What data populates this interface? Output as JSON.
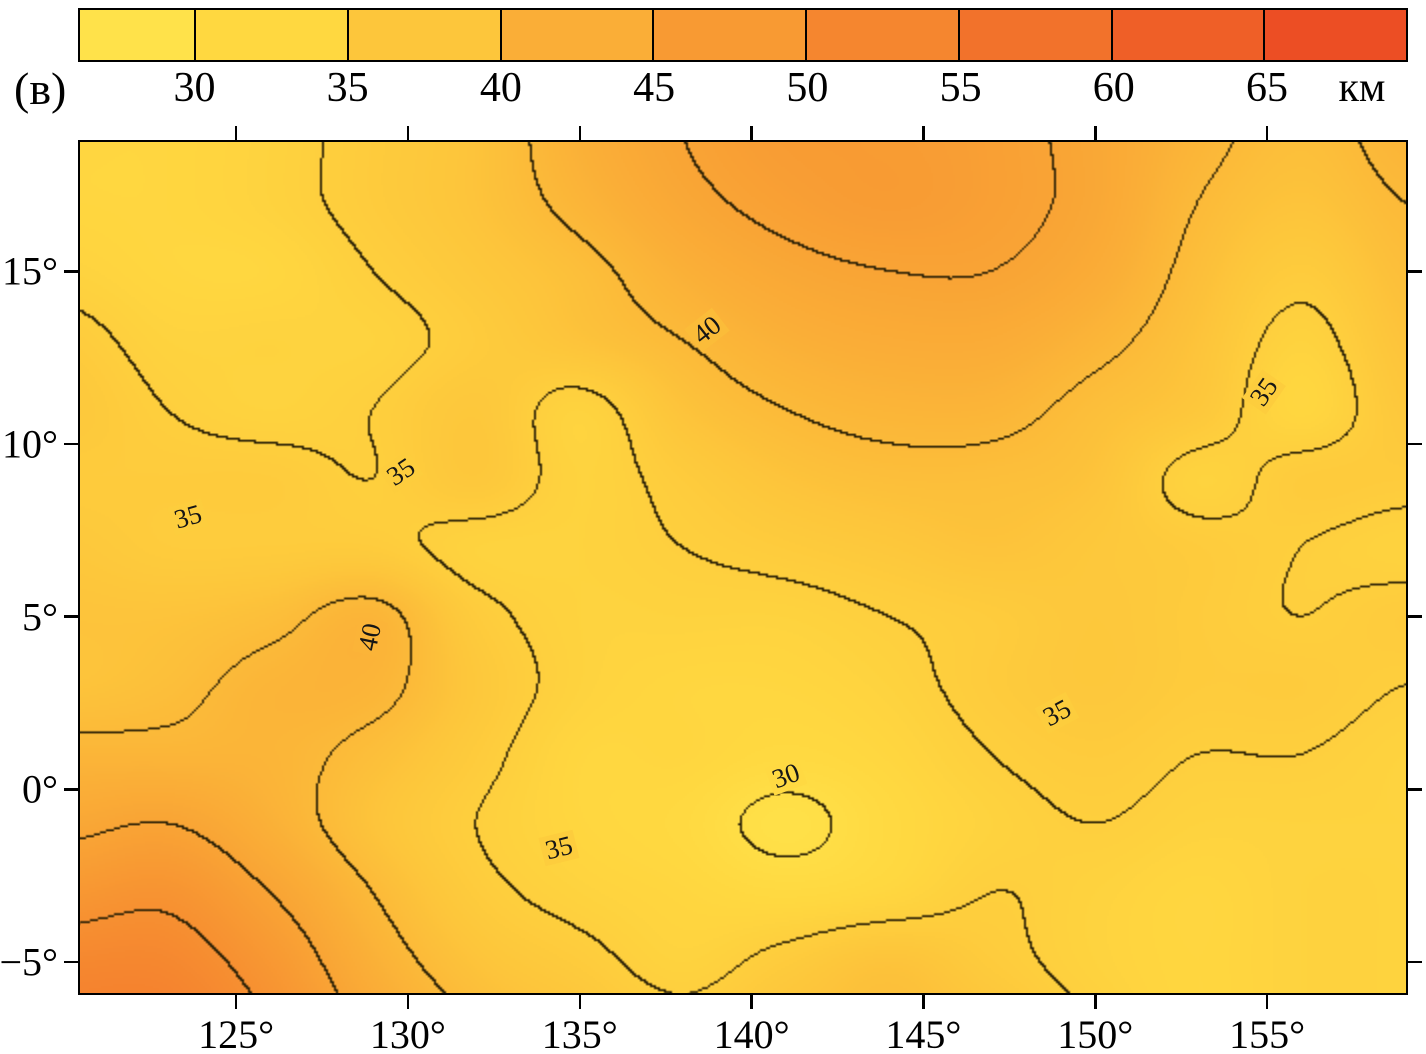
{
  "panel_label": "(в)",
  "colorbar": {
    "unit": "км",
    "vmin": 26.2,
    "vmax": 69.6,
    "tick_values": [
      30,
      35,
      40,
      45,
      50,
      55,
      60,
      65
    ],
    "tick_labels": [
      "30",
      "35",
      "40",
      "45",
      "50",
      "55",
      "60",
      "65"
    ]
  },
  "axes": {
    "x_ticks": [
      {
        "value": 125,
        "label": "125°"
      },
      {
        "value": 130,
        "label": "130°"
      },
      {
        "value": 135,
        "label": "135°"
      },
      {
        "value": 140,
        "label": "140°"
      },
      {
        "value": 145,
        "label": "145°"
      },
      {
        "value": 150,
        "label": "150°"
      },
      {
        "value": 155,
        "label": "155°"
      }
    ],
    "y_ticks": [
      {
        "value": 15,
        "label": "15°"
      },
      {
        "value": 10,
        "label": "10°"
      },
      {
        "value": 5,
        "label": "5°"
      },
      {
        "value": 0,
        "label": "0°"
      },
      {
        "value": -5,
        "label": "−5°"
      }
    ]
  },
  "chart_data": {
    "type": "heatmap",
    "title": "",
    "x_name": "longitude_deg",
    "y_name": "latitude_deg",
    "value_unit": "км",
    "x_range": [
      120.4,
      159.1
    ],
    "y_range": [
      -5.95,
      18.8
    ],
    "contour_levels": [
      30,
      35,
      40,
      45,
      50,
      55,
      60,
      65
    ],
    "grid_lons": [
      120,
      123,
      126,
      129,
      132,
      135,
      138,
      141,
      144,
      147,
      150,
      153,
      156,
      159
    ],
    "grid_lats": [
      19,
      17,
      15,
      13,
      11,
      9,
      7,
      5,
      3,
      1,
      -1,
      -3,
      -5,
      -7
    ],
    "values": [
      [
        33,
        33,
        34,
        36,
        38,
        42,
        45,
        47,
        47,
        46,
        44,
        41,
        39,
        41
      ],
      [
        33,
        33,
        34,
        36,
        38,
        41,
        44,
        46,
        47,
        46,
        44,
        40,
        38,
        40
      ],
      [
        34,
        33,
        33,
        35,
        37,
        39,
        42,
        44,
        45,
        45,
        43,
        39,
        36,
        39
      ],
      [
        36,
        34,
        34,
        34,
        36,
        38,
        40,
        42,
        43,
        43,
        41,
        38,
        34,
        38
      ],
      [
        37,
        35,
        34,
        35,
        37,
        34,
        38,
        40,
        41,
        41,
        39,
        37,
        33,
        37
      ],
      [
        36,
        36,
        36,
        35,
        37,
        34,
        36,
        38,
        39,
        39,
        38,
        34,
        36,
        36
      ],
      [
        37,
        36,
        36,
        36,
        34,
        34,
        35,
        36,
        37,
        38,
        37,
        36,
        35,
        34
      ],
      [
        38,
        38,
        39,
        41,
        36,
        34,
        34,
        34,
        35,
        36,
        37,
        36,
        35,
        36
      ],
      [
        38,
        39,
        41,
        41,
        37,
        34,
        33,
        33,
        34,
        36,
        37,
        36,
        36,
        35
      ],
      [
        41,
        41,
        41,
        39,
        36,
        33,
        33,
        32,
        33,
        35,
        36,
        35,
        35,
        34
      ],
      [
        44,
        45,
        42,
        38,
        35,
        33,
        32,
        29,
        32,
        34,
        35,
        34,
        34,
        34
      ],
      [
        48,
        49,
        45,
        40,
        36,
        34,
        33,
        32,
        33,
        35,
        34,
        33,
        34,
        34
      ],
      [
        52,
        52,
        48,
        42,
        38,
        36,
        34,
        36,
        38,
        36,
        34,
        33,
        34,
        34
      ],
      [
        54,
        54,
        50,
        44,
        40,
        38,
        36,
        38,
        39,
        38,
        35,
        33,
        34,
        34
      ]
    ],
    "colormap": [
      {
        "v": 27.5,
        "c": "#ffe44c"
      },
      {
        "v": 32.5,
        "c": "#ffd840"
      },
      {
        "v": 37.5,
        "c": "#fdc63b"
      },
      {
        "v": 42.5,
        "c": "#faae37"
      },
      {
        "v": 47.5,
        "c": "#f89a33"
      },
      {
        "v": 52.5,
        "c": "#f5862f"
      },
      {
        "v": 57.5,
        "c": "#f2722b"
      },
      {
        "v": 62.5,
        "c": "#ef5f27"
      },
      {
        "v": 67.5,
        "c": "#ec4e24"
      }
    ],
    "contour_labels": [
      {
        "text": "40",
        "lon": 138.7,
        "lat": 13.3,
        "rot": -38,
        "bg": "#fbbc39"
      },
      {
        "text": "35",
        "lon": 123.6,
        "lat": 7.9,
        "rot": -16,
        "bg": "#fdcd3d"
      },
      {
        "text": "35",
        "lon": 129.8,
        "lat": 9.2,
        "rot": -34,
        "bg": "#fdcd3d"
      },
      {
        "text": "40",
        "lon": 128.9,
        "lat": 4.4,
        "rot": -78,
        "bg": "#fbb438"
      },
      {
        "text": "35",
        "lon": 148.9,
        "lat": 2.2,
        "rot": -28,
        "bg": "#fdcd3d"
      },
      {
        "text": "30",
        "lon": 141.0,
        "lat": 0.4,
        "rot": -20,
        "bg": "#ffd942"
      },
      {
        "text": "35",
        "lon": 134.4,
        "lat": -1.7,
        "rot": -14,
        "bg": "#fdcd3d"
      },
      {
        "text": "35",
        "lon": 154.9,
        "lat": 11.5,
        "rot": -55,
        "bg": "#fdcd3d"
      }
    ]
  }
}
